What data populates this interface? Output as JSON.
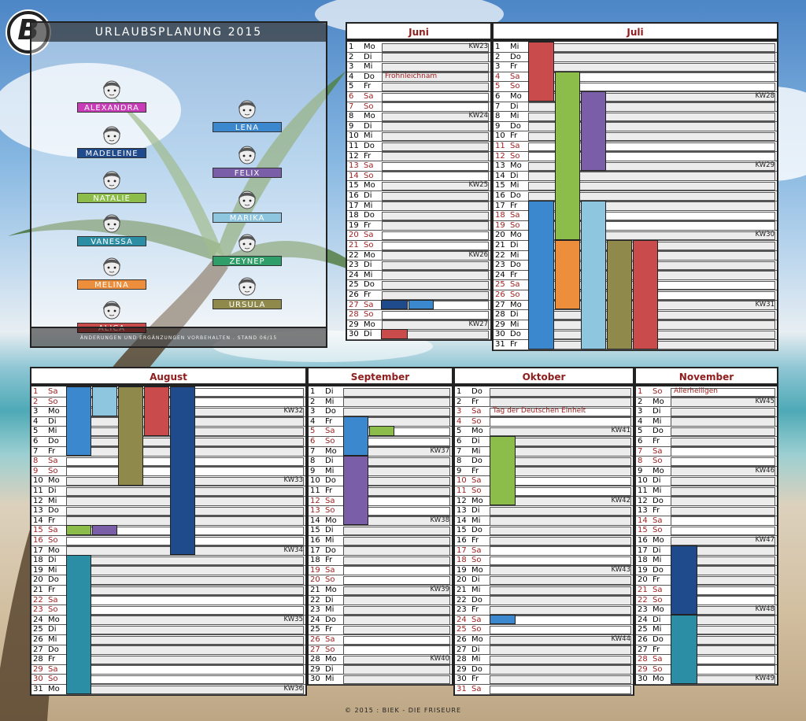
{
  "title": "URLAUBSPLANUNG 2015",
  "note": "ÄNDERUNGEN UND ERGÄNZUNGEN VORBEHALTEN . STAND 06/15",
  "footer": "© 2015 : BIEK - DIE FRISEURE",
  "logo_letter": "B",
  "employees": [
    {
      "name": "ALEXANDRA",
      "color": "#c83cb8"
    },
    {
      "name": "LENA",
      "color": "#3b88cf"
    },
    {
      "name": "MADELEINE",
      "color": "#1f4a8c"
    },
    {
      "name": "FELIX",
      "color": "#7a5fa8"
    },
    {
      "name": "NATALIE",
      "color": "#8cbd4a"
    },
    {
      "name": "MARIKA",
      "color": "#8ec6df"
    },
    {
      "name": "VANESSA",
      "color": "#2b8ea4"
    },
    {
      "name": "ZEYNEP",
      "color": "#2f9e69"
    },
    {
      "name": "MELINA",
      "color": "#ec8e3b"
    },
    {
      "name": "URSULA",
      "color": "#8f8a4c"
    },
    {
      "name": "ALICA",
      "color": "#c94b4b"
    }
  ],
  "weekday_abbr": [
    "Mo",
    "Di",
    "Mi",
    "Do",
    "Fr",
    "Sa",
    "So"
  ],
  "months": [
    {
      "name": "Juni",
      "days": 30,
      "first_weekday": 0,
      "kw": [
        [
          "1",
          "KW23"
        ],
        [
          "8",
          "KW24"
        ],
        [
          "15",
          "KW25"
        ],
        [
          "22",
          "KW26"
        ],
        [
          "29",
          "KW27"
        ]
      ],
      "holidays": [
        [
          "4",
          "Frohnleichnam"
        ]
      ],
      "vacations": [
        {
          "employee": "MADELEINE",
          "from": 27,
          "to": 27
        },
        {
          "employee": "LENA",
          "from": 27,
          "to": 27
        },
        {
          "employee": "ALICA",
          "from": 30,
          "to": 30
        }
      ]
    },
    {
      "name": "Juli",
      "days": 31,
      "first_weekday": 2,
      "kw": [
        [
          "6",
          "KW28"
        ],
        [
          "13",
          "KW29"
        ],
        [
          "20",
          "KW30"
        ],
        [
          "27",
          "KW31"
        ]
      ],
      "holidays": [],
      "vacations": [
        {
          "employee": "ALICA",
          "from": 1,
          "to": 6
        },
        {
          "employee": "NATALIE",
          "from": 4,
          "to": 20
        },
        {
          "employee": "FELIX",
          "from": 6,
          "to": 13
        },
        {
          "employee": "LENA",
          "from": 17,
          "to": 31
        },
        {
          "employee": "MARIKA",
          "from": 17,
          "to": 31
        },
        {
          "employee": "MELINA",
          "from": 21,
          "to": 27
        },
        {
          "employee": "URSULA",
          "from": 21,
          "to": 31
        },
        {
          "employee": "ALICA",
          "from": 21,
          "to": 31
        }
      ]
    },
    {
      "name": "August",
      "days": 31,
      "first_weekday": 5,
      "kw": [
        [
          "3",
          "KW32"
        ],
        [
          "10",
          "KW33"
        ],
        [
          "17",
          "KW34"
        ],
        [
          "24",
          "KW35"
        ],
        [
          "31",
          "KW36"
        ]
      ],
      "holidays": [],
      "vacations": [
        {
          "employee": "LENA",
          "from": 1,
          "to": 7
        },
        {
          "employee": "MARIKA",
          "from": 1,
          "to": 3
        },
        {
          "employee": "URSULA",
          "from": 1,
          "to": 10
        },
        {
          "employee": "ALICA",
          "from": 1,
          "to": 5
        },
        {
          "employee": "MADELEINE",
          "from": 1,
          "to": 17
        },
        {
          "employee": "NATALIE",
          "from": 15,
          "to": 15
        },
        {
          "employee": "FELIX",
          "from": 15,
          "to": 15
        },
        {
          "employee": "VANESSA",
          "from": 18,
          "to": 31
        }
      ]
    },
    {
      "name": "September",
      "days": 30,
      "first_weekday": 1,
      "kw": [
        [
          "7",
          "KW37"
        ],
        [
          "14",
          "KW38"
        ],
        [
          "21",
          "KW39"
        ],
        [
          "28",
          "KW40"
        ]
      ],
      "holidays": [],
      "vacations": [
        {
          "employee": "LENA",
          "from": 4,
          "to": 7
        },
        {
          "employee": "NATALIE",
          "from": 5,
          "to": 5
        },
        {
          "employee": "FELIX",
          "from": 8,
          "to": 14
        }
      ]
    },
    {
      "name": "Oktober",
      "days": 31,
      "first_weekday": 3,
      "kw": [
        [
          "5",
          "KW41"
        ],
        [
          "12",
          "KW42"
        ],
        [
          "19",
          "KW43"
        ],
        [
          "26",
          "KW44"
        ]
      ],
      "holidays": [
        [
          "3",
          "Tag der Deutschen Einheit"
        ]
      ],
      "vacations": [
        {
          "employee": "NATALIE",
          "from": 6,
          "to": 12
        },
        {
          "employee": "LENA",
          "from": 24,
          "to": 24
        }
      ]
    },
    {
      "name": "November",
      "days": 30,
      "first_weekday": 6,
      "kw": [
        [
          "2",
          "KW45"
        ],
        [
          "9",
          "KW46"
        ],
        [
          "16",
          "KW47"
        ],
        [
          "23",
          "KW48"
        ],
        [
          "30",
          "KW49"
        ]
      ],
      "holidays": [
        [
          "1",
          "Allerheiligen"
        ]
      ],
      "vacations": [
        {
          "employee": "MADELEINE",
          "from": 17,
          "to": 23
        },
        {
          "employee": "VANESSA",
          "from": 24,
          "to": 30
        }
      ]
    }
  ]
}
